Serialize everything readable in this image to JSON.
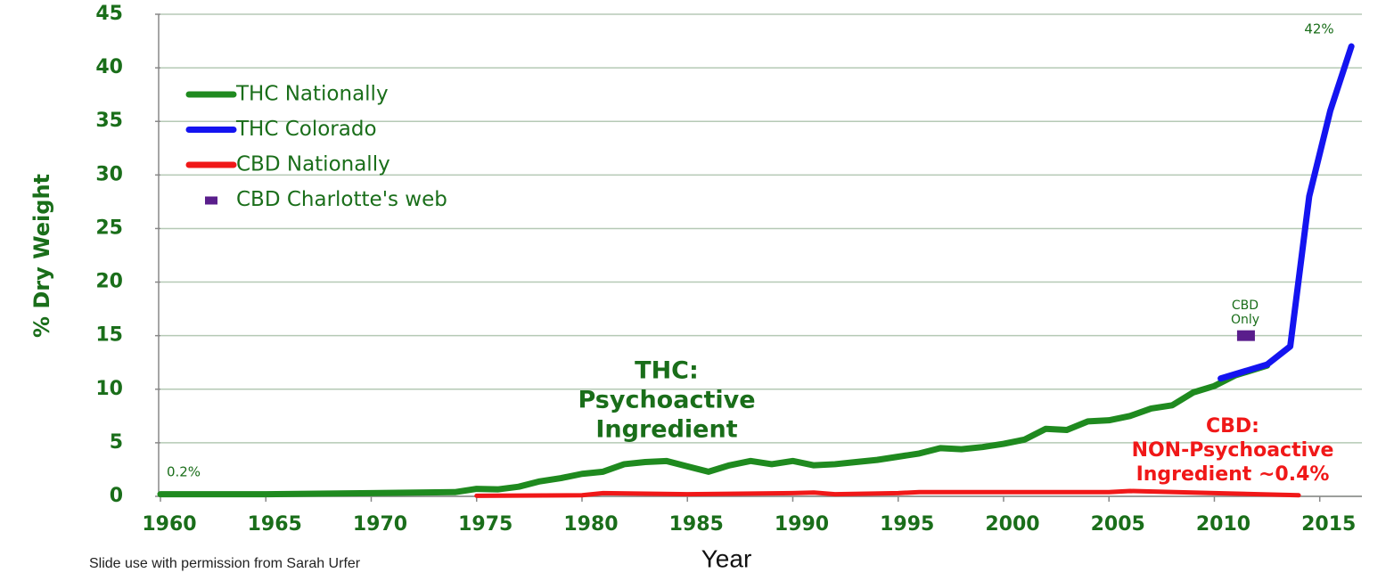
{
  "chart_data": {
    "type": "line",
    "x_label": "Year",
    "y_label": "% Dry Weight",
    "footer": "Slide use with permission from Sarah Urfer",
    "xlim": [
      1960,
      2017
    ],
    "xticks": [
      1960,
      1965,
      1970,
      1975,
      1980,
      1985,
      1990,
      1995,
      2000,
      2005,
      2010,
      2015
    ],
    "ylim": [
      0,
      45
    ],
    "yticks": [
      0,
      5,
      10,
      15,
      20,
      25,
      30,
      35,
      40,
      45
    ],
    "grid": true,
    "legend": "upper left",
    "series": [
      {
        "name": "THC Nationally",
        "color": "#1f8a1f",
        "x": [
          1960,
          1965,
          1970,
          1974,
          1975,
          1976,
          1977,
          1978,
          1979,
          1980,
          1981,
          1982,
          1983,
          1984,
          1985,
          1986,
          1987,
          1988,
          1989,
          1990,
          1991,
          1992,
          1993,
          1994,
          1995,
          1996,
          1997,
          1998,
          1999,
          2000,
          2001,
          2002,
          2003,
          2004,
          2005,
          2006,
          2007,
          2008,
          2009,
          2010,
          2011,
          2012.5
        ],
        "values": [
          0.2,
          0.2,
          0.3,
          0.4,
          0.7,
          0.65,
          0.9,
          1.4,
          1.7,
          2.1,
          2.3,
          3.0,
          3.2,
          3.3,
          2.8,
          2.3,
          2.9,
          3.3,
          3.0,
          3.3,
          2.9,
          3.0,
          3.2,
          3.4,
          3.7,
          4.0,
          4.5,
          4.4,
          4.6,
          4.9,
          5.3,
          6.3,
          6.2,
          7.0,
          7.1,
          7.5,
          8.2,
          8.5,
          9.7,
          10.3,
          11.3,
          12.2
        ]
      },
      {
        "name": "THC Colorado",
        "color": "#1414f0",
        "x": [
          2010.3,
          2012.5,
          2013.6,
          2014.5,
          2015.5,
          2016.5
        ],
        "values": [
          11,
          12.3,
          14,
          28,
          36,
          42
        ]
      },
      {
        "name": "CBD Nationally",
        "color": "#f01818",
        "x": [
          1975,
          1980,
          1981,
          1985,
          1990,
          1991,
          1992,
          1995,
          1996,
          2000,
          2005,
          2006,
          2010,
          2014
        ],
        "values": [
          0.05,
          0.1,
          0.3,
          0.2,
          0.3,
          0.35,
          0.2,
          0.3,
          0.4,
          0.4,
          0.4,
          0.5,
          0.3,
          0.1
        ]
      },
      {
        "name": "CBD Charlotte's web",
        "color": "#5a1e8c",
        "marker": "square",
        "x": [
          2011.5
        ],
        "values": [
          15
        ]
      }
    ],
    "annotations": [
      {
        "lines": [
          "0.2%"
        ],
        "color": "#1a6e1a"
      },
      {
        "lines": [
          "42%"
        ],
        "color": "#1a6e1a"
      },
      {
        "lines": [
          "CBD",
          "Only"
        ],
        "color": "#1a6e1a"
      },
      {
        "lines": [
          "THC:",
          "Psychoactive",
          "Ingredient"
        ],
        "color": "#1a6e1a"
      },
      {
        "lines": [
          "CBD:",
          "NON-Psychoactive",
          "Ingredient ~0.4%"
        ],
        "color": "#f01818"
      }
    ]
  }
}
